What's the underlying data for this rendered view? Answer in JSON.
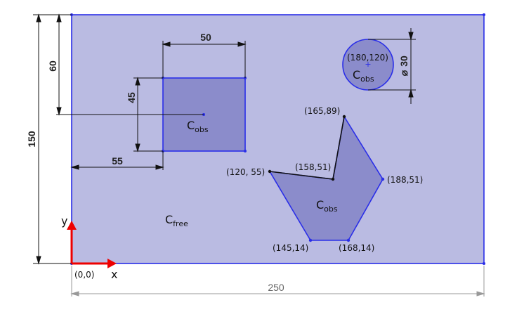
{
  "colors": {
    "free_space": "#babbe2",
    "obstacle": "#8b8ccb",
    "edge": "#2a2ee8",
    "axis": "#ee0000",
    "dim_line": "#111111"
  },
  "dimensions": {
    "width": "250",
    "height": "150",
    "rect_width": "50",
    "rect_height": "45",
    "rect_top_offset": "60",
    "rect_left_offset": "55",
    "circle_diameter": "30",
    "diameter_symbol": "⌀"
  },
  "labels": {
    "c_letter": "C",
    "obs_sub": "obs",
    "free_sub": "free",
    "origin": "(0,0)",
    "x_axis": "x",
    "y_axis": "y"
  },
  "points": {
    "circle_center": "(180,120)",
    "p_165_89": "(165,89)",
    "p_158_51": "(158,51)",
    "p_120_55": "(120, 55)",
    "p_188_51": "(188,51)",
    "p_145_14": "(145,14)",
    "p_168_14": "(168,14)"
  }
}
